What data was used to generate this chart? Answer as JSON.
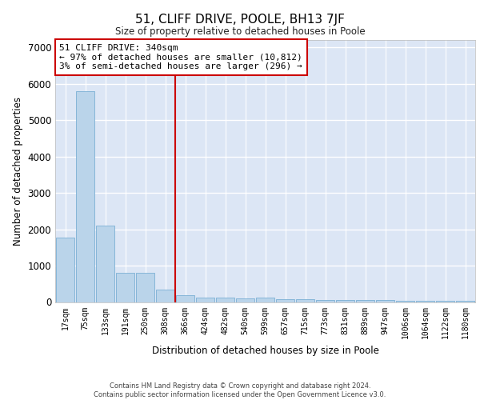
{
  "title": "51, CLIFF DRIVE, POOLE, BH13 7JF",
  "subtitle": "Size of property relative to detached houses in Poole",
  "xlabel": "Distribution of detached houses by size in Poole",
  "ylabel": "Number of detached properties",
  "bar_color": "#bad4ea",
  "bar_edge_color": "#7bafd4",
  "background_color": "#dce6f5",
  "grid_color": "#ffffff",
  "vline_color": "#cc0000",
  "annotation_text": "51 CLIFF DRIVE: 340sqm\n← 97% of detached houses are smaller (10,812)\n3% of semi-detached houses are larger (296) →",
  "annotation_box_color": "#cc0000",
  "categories": [
    "17sqm",
    "75sqm",
    "133sqm",
    "191sqm",
    "250sqm",
    "308sqm",
    "366sqm",
    "424sqm",
    "482sqm",
    "540sqm",
    "599sqm",
    "657sqm",
    "715sqm",
    "773sqm",
    "831sqm",
    "889sqm",
    "947sqm",
    "1006sqm",
    "1064sqm",
    "1122sqm",
    "1180sqm"
  ],
  "values": [
    1780,
    5800,
    2090,
    800,
    800,
    340,
    180,
    120,
    110,
    100,
    110,
    80,
    70,
    60,
    55,
    50,
    45,
    40,
    35,
    30,
    25
  ],
  "ylim": [
    0,
    7200
  ],
  "yticks": [
    0,
    1000,
    2000,
    3000,
    4000,
    5000,
    6000,
    7000
  ],
  "footer_line1": "Contains HM Land Registry data © Crown copyright and database right 2024.",
  "footer_line2": "Contains public sector information licensed under the Open Government Licence v3.0.",
  "fig_width": 6.0,
  "fig_height": 5.0,
  "dpi": 100
}
